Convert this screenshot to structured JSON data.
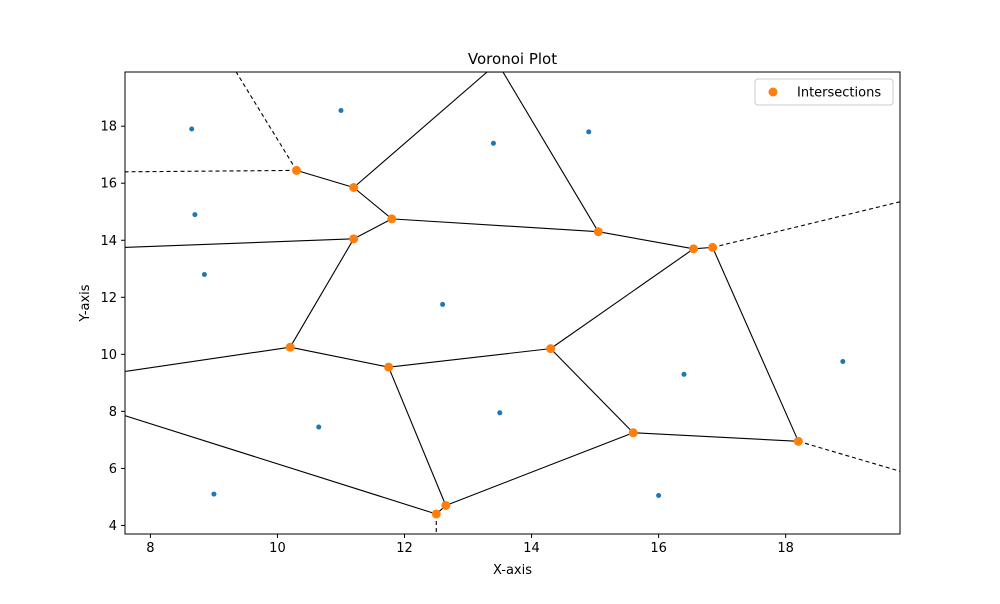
{
  "chart_data": {
    "type": "scatter",
    "subtype": "voronoi",
    "title": "Voronoi Plot",
    "xlabel": "X-axis",
    "ylabel": "Y-axis",
    "xlim": [
      7.6,
      19.8
    ],
    "ylim": [
      3.7,
      19.9
    ],
    "xticks": [
      8,
      10,
      12,
      14,
      16,
      18
    ],
    "yticks": [
      4,
      6,
      8,
      10,
      12,
      14,
      16,
      18
    ],
    "grid": false,
    "legend": {
      "placement": "top-right",
      "entries": [
        "Intersections"
      ]
    },
    "colors": {
      "points": "#1f77b4",
      "intersections": "#ff7f0e",
      "edges": "#000000"
    },
    "points": [
      [
        8.65,
        17.9
      ],
      [
        11.0,
        18.55
      ],
      [
        13.4,
        17.4
      ],
      [
        14.9,
        17.8
      ],
      [
        8.7,
        14.9
      ],
      [
        8.85,
        12.8
      ],
      [
        12.6,
        11.75
      ],
      [
        16.4,
        9.3
      ],
      [
        18.9,
        9.75
      ],
      [
        10.65,
        7.45
      ],
      [
        13.5,
        7.95
      ],
      [
        9.0,
        5.1
      ],
      [
        16.0,
        5.05
      ]
    ],
    "intersections": [
      [
        10.3,
        16.45
      ],
      [
        11.2,
        15.85
      ],
      [
        11.8,
        14.75
      ],
      [
        11.2,
        14.05
      ],
      [
        15.05,
        14.3
      ],
      [
        16.55,
        13.7
      ],
      [
        16.85,
        13.75
      ],
      [
        10.2,
        10.25
      ],
      [
        11.75,
        9.55
      ],
      [
        14.3,
        10.2
      ],
      [
        15.6,
        7.25
      ],
      [
        18.2,
        6.95
      ],
      [
        12.65,
        4.7
      ],
      [
        12.5,
        4.4
      ]
    ],
    "edges": [
      [
        [
          10.3,
          16.45
        ],
        [
          11.2,
          15.85
        ]
      ],
      [
        [
          11.2,
          15.85
        ],
        [
          11.8,
          14.75
        ]
      ],
      [
        [
          11.2,
          15.85
        ],
        [
          13.3,
          19.9
        ]
      ],
      [
        [
          13.3,
          19.9
        ],
        [
          13.55,
          19.9
        ]
      ],
      [
        [
          13.55,
          19.9
        ],
        [
          15.05,
          14.3
        ]
      ],
      [
        [
          11.8,
          14.75
        ],
        [
          15.05,
          14.3
        ]
      ],
      [
        [
          11.8,
          14.75
        ],
        [
          11.2,
          14.05
        ]
      ],
      [
        [
          11.2,
          14.05
        ],
        [
          7.6,
          13.75
        ]
      ],
      [
        [
          11.2,
          14.05
        ],
        [
          10.2,
          10.25
        ]
      ],
      [
        [
          15.05,
          14.3
        ],
        [
          16.55,
          13.7
        ]
      ],
      [
        [
          16.55,
          13.7
        ],
        [
          16.85,
          13.75
        ]
      ],
      [
        [
          16.55,
          13.7
        ],
        [
          14.3,
          10.2
        ]
      ],
      [
        [
          16.85,
          13.75
        ],
        [
          18.2,
          6.95
        ]
      ],
      [
        [
          10.2,
          10.25
        ],
        [
          7.6,
          9.4
        ]
      ],
      [
        [
          10.2,
          10.25
        ],
        [
          11.75,
          9.55
        ]
      ],
      [
        [
          11.75,
          9.55
        ],
        [
          14.3,
          10.2
        ]
      ],
      [
        [
          11.75,
          9.55
        ],
        [
          12.65,
          4.7
        ]
      ],
      [
        [
          14.3,
          10.2
        ],
        [
          15.6,
          7.25
        ]
      ],
      [
        [
          15.6,
          7.25
        ],
        [
          18.2,
          6.95
        ]
      ],
      [
        [
          15.6,
          7.25
        ],
        [
          12.65,
          4.7
        ]
      ],
      [
        [
          12.65,
          4.7
        ],
        [
          12.5,
          4.4
        ]
      ],
      [
        [
          12.5,
          4.4
        ],
        [
          7.6,
          7.85
        ]
      ]
    ],
    "ridges": [
      [
        [
          10.3,
          16.45
        ],
        [
          9.35,
          19.9
        ]
      ],
      [
        [
          10.3,
          16.45
        ],
        [
          7.6,
          16.4
        ]
      ],
      [
        [
          16.85,
          13.75
        ],
        [
          19.8,
          15.35
        ]
      ],
      [
        [
          18.2,
          6.95
        ],
        [
          19.8,
          5.9
        ]
      ],
      [
        [
          12.5,
          4.4
        ],
        [
          12.5,
          3.7
        ]
      ]
    ]
  }
}
